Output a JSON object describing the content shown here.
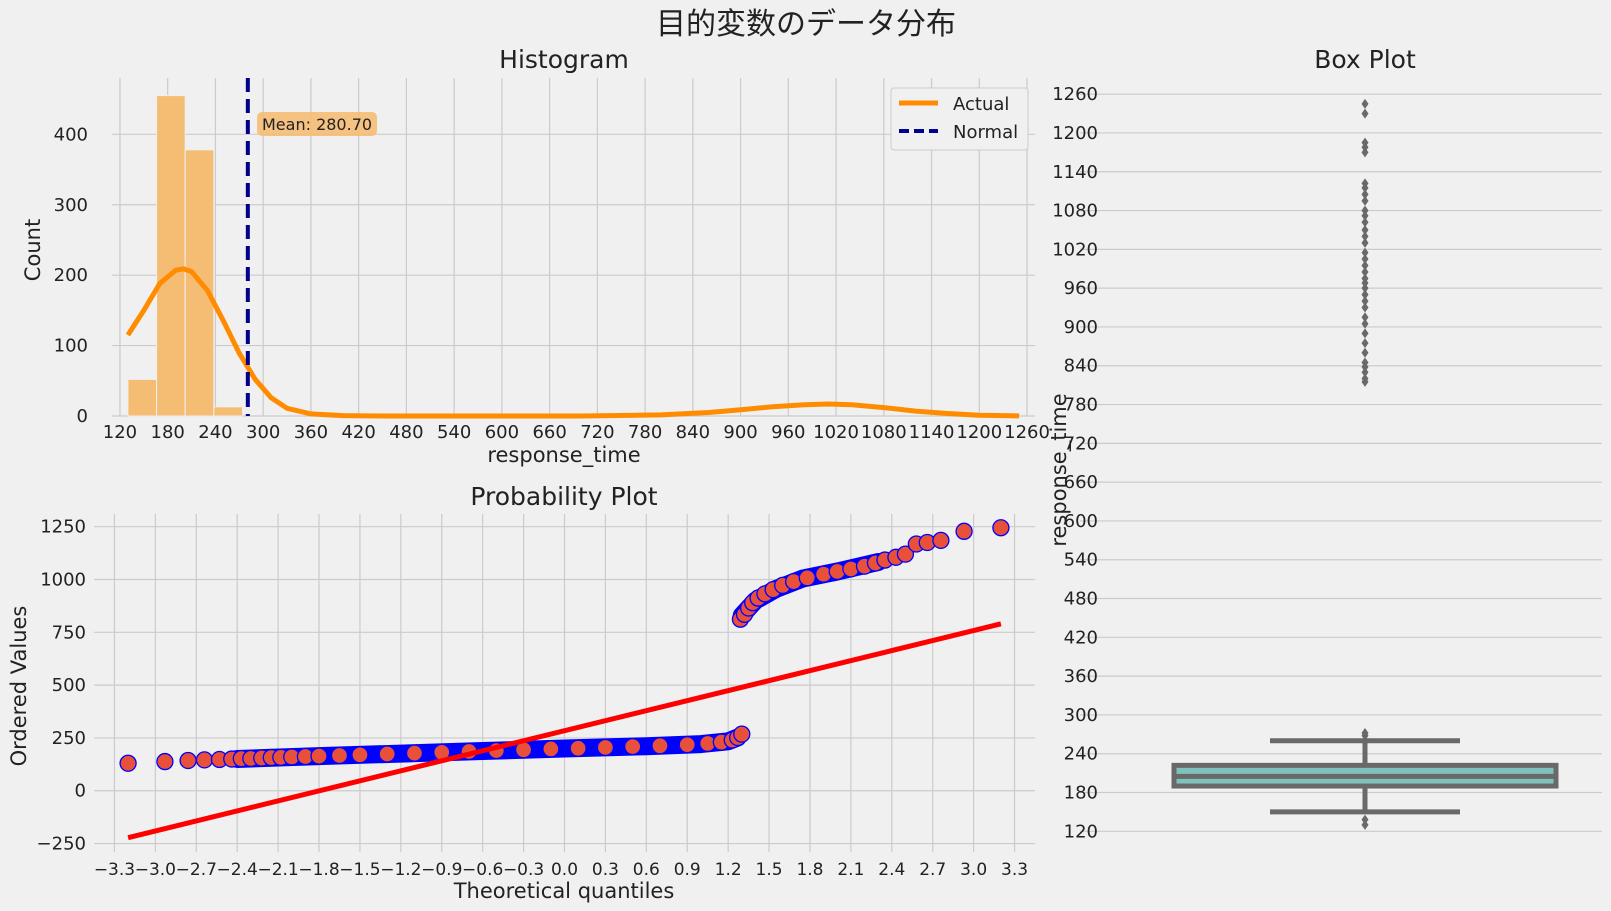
{
  "suptitle": "目的変数のデータ分布",
  "colors": {
    "background": "#f0f0f0",
    "grid": "#cbcbcb",
    "hist_bar": "#f5bc74",
    "kde_line": "#ff8c00",
    "mean_line": "#00008b",
    "mean_box": "#f5bc74",
    "qq_marker_fill": "#e8503a",
    "qq_marker_edge": "#0000ff",
    "qq_fit_line": "#ff0000",
    "box_fill": "#7fc1bb",
    "box_edge": "#696969"
  },
  "chart_data": [
    {
      "id": "histogram",
      "type": "bar",
      "title": "Histogram",
      "xlabel": "response_time",
      "ylabel": "Count",
      "xlim": [
        110,
        1270
      ],
      "ylim": [
        0,
        480
      ],
      "xticks": [
        120,
        180,
        240,
        300,
        360,
        420,
        480,
        540,
        600,
        660,
        720,
        780,
        840,
        900,
        960,
        1020,
        1080,
        1140,
        1200,
        1260
      ],
      "yticks": [
        0,
        100,
        200,
        300,
        400
      ],
      "bin_width": 36,
      "bins": [
        {
          "x0": 130,
          "count": 52
        },
        {
          "x0": 166,
          "count": 455
        },
        {
          "x0": 202,
          "count": 378
        },
        {
          "x0": 238,
          "count": 13
        }
      ],
      "kde": {
        "name": "Actual",
        "x": [
          130,
          150,
          170,
          190,
          200,
          210,
          230,
          250,
          270,
          290,
          310,
          330,
          360,
          400,
          450,
          500,
          600,
          700,
          800,
          860,
          900,
          940,
          980,
          1010,
          1040,
          1080,
          1120,
          1160,
          1200,
          1230,
          1250
        ],
        "y": [
          115,
          150,
          188,
          207,
          209,
          205,
          178,
          135,
          89,
          52,
          26,
          11,
          3,
          0.5,
          0,
          0,
          0,
          0,
          1.5,
          5,
          9,
          13,
          16,
          17,
          16,
          12,
          7,
          3.5,
          1.2,
          0.5,
          0.2
        ]
      },
      "mean": {
        "value": 280.7,
        "label": "Mean: 280.70"
      },
      "legend": {
        "position": "top-right",
        "entries": [
          "Actual",
          "Normal"
        ]
      }
    },
    {
      "id": "probability",
      "type": "scatter",
      "title": "Probability Plot",
      "xlabel": "Theoretical quantiles",
      "ylabel": "Ordered Values",
      "xlim": [
        -3.45,
        3.45
      ],
      "ylim": [
        -290,
        1310
      ],
      "xticks": [
        "−3.3",
        "−3.0",
        "−2.7",
        "−2.4",
        "−2.1",
        "−1.8",
        "−1.5",
        "−1.2",
        "−0.9",
        "−0.6",
        "−0.3",
        "0.0",
        "0.3",
        "0.6",
        "0.9",
        "1.2",
        "1.5",
        "1.8",
        "2.1",
        "2.4",
        "2.7",
        "3.0",
        "3.3"
      ],
      "yticks": [
        "−250",
        "0",
        "250",
        "500",
        "750",
        "1000",
        "1250"
      ],
      "points": [
        [
          -3.2,
          130
        ],
        [
          -2.93,
          138
        ],
        [
          -2.76,
          143
        ],
        [
          -2.64,
          146
        ],
        [
          -2.53,
          148
        ],
        [
          -2.44,
          150
        ],
        [
          -2.37,
          152
        ],
        [
          -2.3,
          153
        ],
        [
          -2.22,
          155
        ],
        [
          -2.15,
          157
        ],
        [
          -2.08,
          158
        ],
        [
          -2.0,
          160
        ],
        [
          -1.9,
          162
        ],
        [
          -1.8,
          164
        ],
        [
          -1.65,
          167
        ],
        [
          -1.5,
          170
        ],
        [
          -1.3,
          174
        ],
        [
          -1.1,
          178
        ],
        [
          -0.9,
          182
        ],
        [
          -0.7,
          186
        ],
        [
          -0.5,
          190
        ],
        [
          -0.3,
          194
        ],
        [
          -0.1,
          198
        ],
        [
          0.1,
          201
        ],
        [
          0.3,
          205
        ],
        [
          0.5,
          209
        ],
        [
          0.7,
          213
        ],
        [
          0.9,
          218
        ],
        [
          1.05,
          224
        ],
        [
          1.15,
          230
        ],
        [
          1.23,
          240
        ],
        [
          1.27,
          252
        ],
        [
          1.3,
          268
        ],
        [
          1.29,
          812
        ],
        [
          1.32,
          835
        ],
        [
          1.35,
          865
        ],
        [
          1.38,
          890
        ],
        [
          1.42,
          912
        ],
        [
          1.47,
          932
        ],
        [
          1.53,
          952
        ],
        [
          1.6,
          972
        ],
        [
          1.68,
          990
        ],
        [
          1.78,
          1008
        ],
        [
          1.9,
          1025
        ],
        [
          2.0,
          1038
        ],
        [
          2.1,
          1050
        ],
        [
          2.2,
          1063
        ],
        [
          2.28,
          1078
        ],
        [
          2.35,
          1092
        ],
        [
          2.43,
          1105
        ],
        [
          2.5,
          1120
        ],
        [
          2.58,
          1168
        ],
        [
          2.66,
          1175
        ],
        [
          2.76,
          1185
        ],
        [
          2.93,
          1228
        ],
        [
          3.2,
          1245
        ]
      ],
      "dense_segments": [
        [
          [
            -2.4,
            150
          ],
          [
            -1.8,
            164
          ],
          [
            -1.2,
            176
          ],
          [
            -0.6,
            188
          ],
          [
            0.0,
            200
          ],
          [
            0.6,
            211
          ],
          [
            1.0,
            221
          ],
          [
            1.2,
            234
          ],
          [
            1.27,
            252
          ]
        ],
        [
          [
            1.3,
            830
          ],
          [
            1.4,
            900
          ],
          [
            1.55,
            955
          ],
          [
            1.75,
            1005
          ],
          [
            2.0,
            1038
          ],
          [
            2.3,
            1083
          ]
        ]
      ],
      "fit_line": {
        "x": [
          -3.2,
          3.2
        ],
        "y": [
          -222,
          790
        ]
      }
    },
    {
      "id": "boxplot",
      "type": "box",
      "title": "Box Plot",
      "ylabel": "response_time",
      "ylim": [
        88,
        1285
      ],
      "yticks": [
        120,
        180,
        240,
        300,
        360,
        420,
        480,
        540,
        600,
        660,
        720,
        780,
        840,
        900,
        960,
        1020,
        1080,
        1140,
        1200,
        1260
      ],
      "q1": 190,
      "median": 205,
      "q3": 222,
      "whisker_low": 150,
      "whisker_high": 260,
      "outliers": [
        130,
        138,
        268,
        272,
        815,
        820,
        830,
        838,
        845,
        860,
        875,
        890,
        905,
        915,
        930,
        940,
        950,
        960,
        968,
        975,
        985,
        995,
        1005,
        1015,
        1030,
        1040,
        1050,
        1062,
        1072,
        1080,
        1095,
        1105,
        1115,
        1122,
        1170,
        1178,
        1185,
        1230,
        1245
      ]
    }
  ]
}
